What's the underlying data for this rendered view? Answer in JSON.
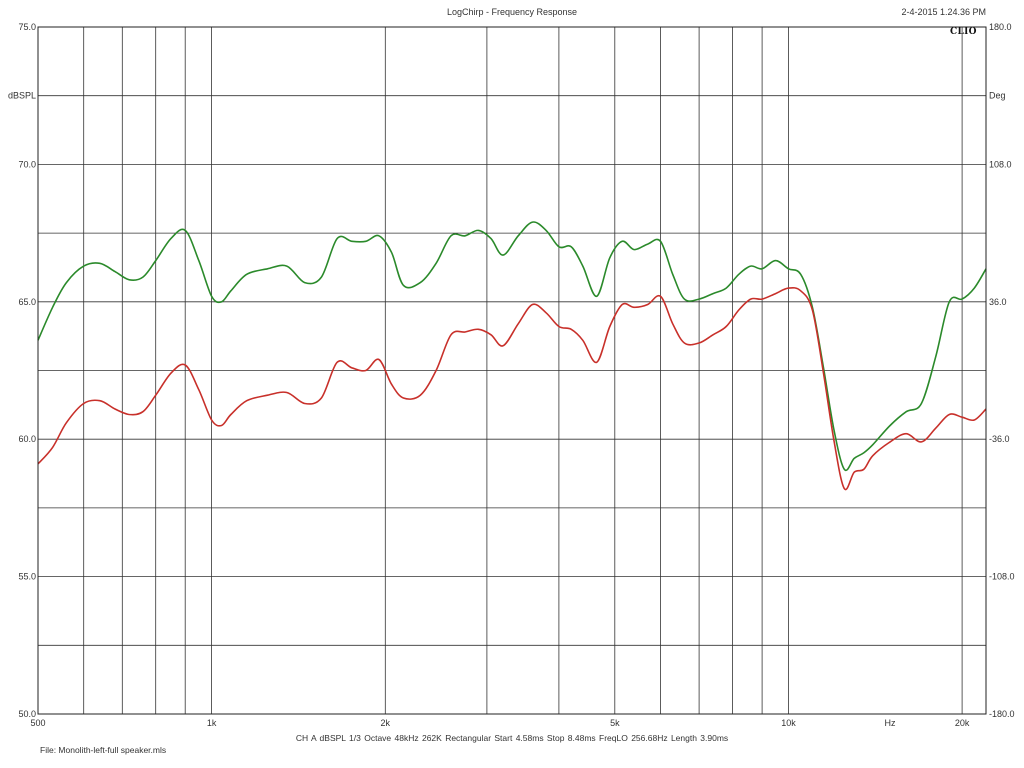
{
  "header": {
    "title": "LogChirp - Frequency Response",
    "timestamp": "2-4-2015 1.24.36 PM",
    "logo_text": "CLIO"
  },
  "footer": {
    "settings": "CH A   dBSPL   1/3 Octave   48kHz   262K   Rectangular   Start 4.58ms   Stop 8.48ms   FreqLO 256.68Hz   Length 3.90ms",
    "file": "File: Monolith-left-full speaker.mls"
  },
  "chart_data": {
    "type": "line",
    "x_scale": "log",
    "xlim": [
      500,
      22000
    ],
    "ylim": [
      50,
      75
    ],
    "y2lim": [
      -180,
      180
    ],
    "grid": true,
    "legend": "none",
    "ylabel": "dBSPL",
    "y2label": "Deg",
    "xunit_label": "Hz",
    "x_ticks": [
      {
        "value": 500,
        "label": "500"
      },
      {
        "value": 1000,
        "label": "1k"
      },
      {
        "value": 2000,
        "label": "2k"
      },
      {
        "value": 5000,
        "label": "5k"
      },
      {
        "value": 10000,
        "label": "10k"
      },
      {
        "value": 20000,
        "label": "20k"
      }
    ],
    "x_gridlines": [
      600,
      700,
      800,
      900,
      1000,
      2000,
      3000,
      4000,
      5000,
      6000,
      7000,
      8000,
      9000,
      10000,
      20000
    ],
    "y_ticks": [
      {
        "value": 75,
        "label": "75.0"
      },
      {
        "value": 70,
        "label": "70.0"
      },
      {
        "value": 65,
        "label": "65.0"
      },
      {
        "value": 60,
        "label": "60.0"
      },
      {
        "value": 55,
        "label": "55.0"
      },
      {
        "value": 50,
        "label": "50.0"
      }
    ],
    "y_gridlines": [
      72.5,
      67.5,
      62.5,
      57.5,
      52.5
    ],
    "y2_ticks": [
      {
        "value": 180,
        "label": "180.0"
      },
      {
        "value": 108,
        "label": "108.0"
      },
      {
        "value": 36,
        "label": "36.0"
      },
      {
        "value": -36,
        "label": "-36.0"
      },
      {
        "value": -108,
        "label": "-108.0"
      },
      {
        "value": -180,
        "label": "-180.0"
      }
    ],
    "series": [
      {
        "color": "#2b8a2b",
        "x": [
          500,
          530,
          560,
          600,
          640,
          680,
          720,
          760,
          800,
          850,
          900,
          950,
          1000,
          1040,
          1080,
          1150,
          1250,
          1350,
          1450,
          1550,
          1650,
          1750,
          1850,
          1950,
          2050,
          2150,
          2300,
          2450,
          2600,
          2750,
          2900,
          3050,
          3200,
          3400,
          3600,
          3800,
          4000,
          4200,
          4400,
          4650,
          4900,
          5150,
          5400,
          5700,
          6000,
          6300,
          6600,
          7000,
          7400,
          7800,
          8200,
          8600,
          9000,
          9500,
          10000,
          10500,
          11000,
          11500,
          12000,
          12500,
          13000,
          13500,
          14000,
          15000,
          16000,
          17000,
          18000,
          19000,
          20000,
          21000,
          22000
        ],
        "y": [
          63.6,
          64.8,
          65.7,
          66.3,
          66.4,
          66.1,
          65.8,
          65.9,
          66.5,
          67.3,
          67.6,
          66.5,
          65.2,
          65.0,
          65.4,
          66.0,
          66.2,
          66.3,
          65.7,
          65.9,
          67.3,
          67.2,
          67.2,
          67.4,
          66.8,
          65.6,
          65.7,
          66.4,
          67.4,
          67.4,
          67.6,
          67.3,
          66.7,
          67.4,
          67.9,
          67.6,
          67.0,
          67.0,
          66.3,
          65.2,
          66.6,
          67.2,
          66.9,
          67.1,
          67.2,
          66.0,
          65.1,
          65.1,
          65.3,
          65.5,
          66.0,
          66.3,
          66.2,
          66.5,
          66.2,
          66.0,
          64.8,
          62.6,
          60.3,
          58.9,
          59.3,
          59.5,
          59.8,
          60.5,
          61.0,
          61.3,
          63.0,
          65.0,
          65.1,
          65.5,
          66.2
        ]
      },
      {
        "color": "#c8302a",
        "x": [
          500,
          530,
          560,
          600,
          640,
          680,
          720,
          760,
          800,
          850,
          900,
          950,
          1000,
          1040,
          1080,
          1150,
          1250,
          1350,
          1450,
          1550,
          1650,
          1750,
          1850,
          1950,
          2050,
          2150,
          2300,
          2450,
          2600,
          2750,
          2900,
          3050,
          3200,
          3400,
          3600,
          3800,
          4000,
          4200,
          4400,
          4650,
          4900,
          5150,
          5400,
          5700,
          6000,
          6300,
          6600,
          7000,
          7400,
          7800,
          8200,
          8600,
          9000,
          9500,
          10000,
          10500,
          11000,
          11500,
          12000,
          12500,
          13000,
          13500,
          14000,
          15000,
          16000,
          17000,
          18000,
          19000,
          20000,
          21000,
          22000
        ],
        "y": [
          59.1,
          59.7,
          60.6,
          61.3,
          61.4,
          61.1,
          60.9,
          61.0,
          61.6,
          62.4,
          62.7,
          61.8,
          60.7,
          60.5,
          60.9,
          61.4,
          61.6,
          61.7,
          61.3,
          61.5,
          62.8,
          62.6,
          62.5,
          62.9,
          62.0,
          61.5,
          61.6,
          62.5,
          63.8,
          63.9,
          64.0,
          63.8,
          63.4,
          64.2,
          64.9,
          64.6,
          64.1,
          64.0,
          63.6,
          62.8,
          64.1,
          64.9,
          64.8,
          64.9,
          65.2,
          64.2,
          63.5,
          63.5,
          63.8,
          64.1,
          64.7,
          65.1,
          65.1,
          65.3,
          65.5,
          65.4,
          64.7,
          62.4,
          59.9,
          58.2,
          58.8,
          58.9,
          59.4,
          59.9,
          60.2,
          59.9,
          60.4,
          60.9,
          60.8,
          60.7,
          61.1
        ]
      }
    ]
  }
}
